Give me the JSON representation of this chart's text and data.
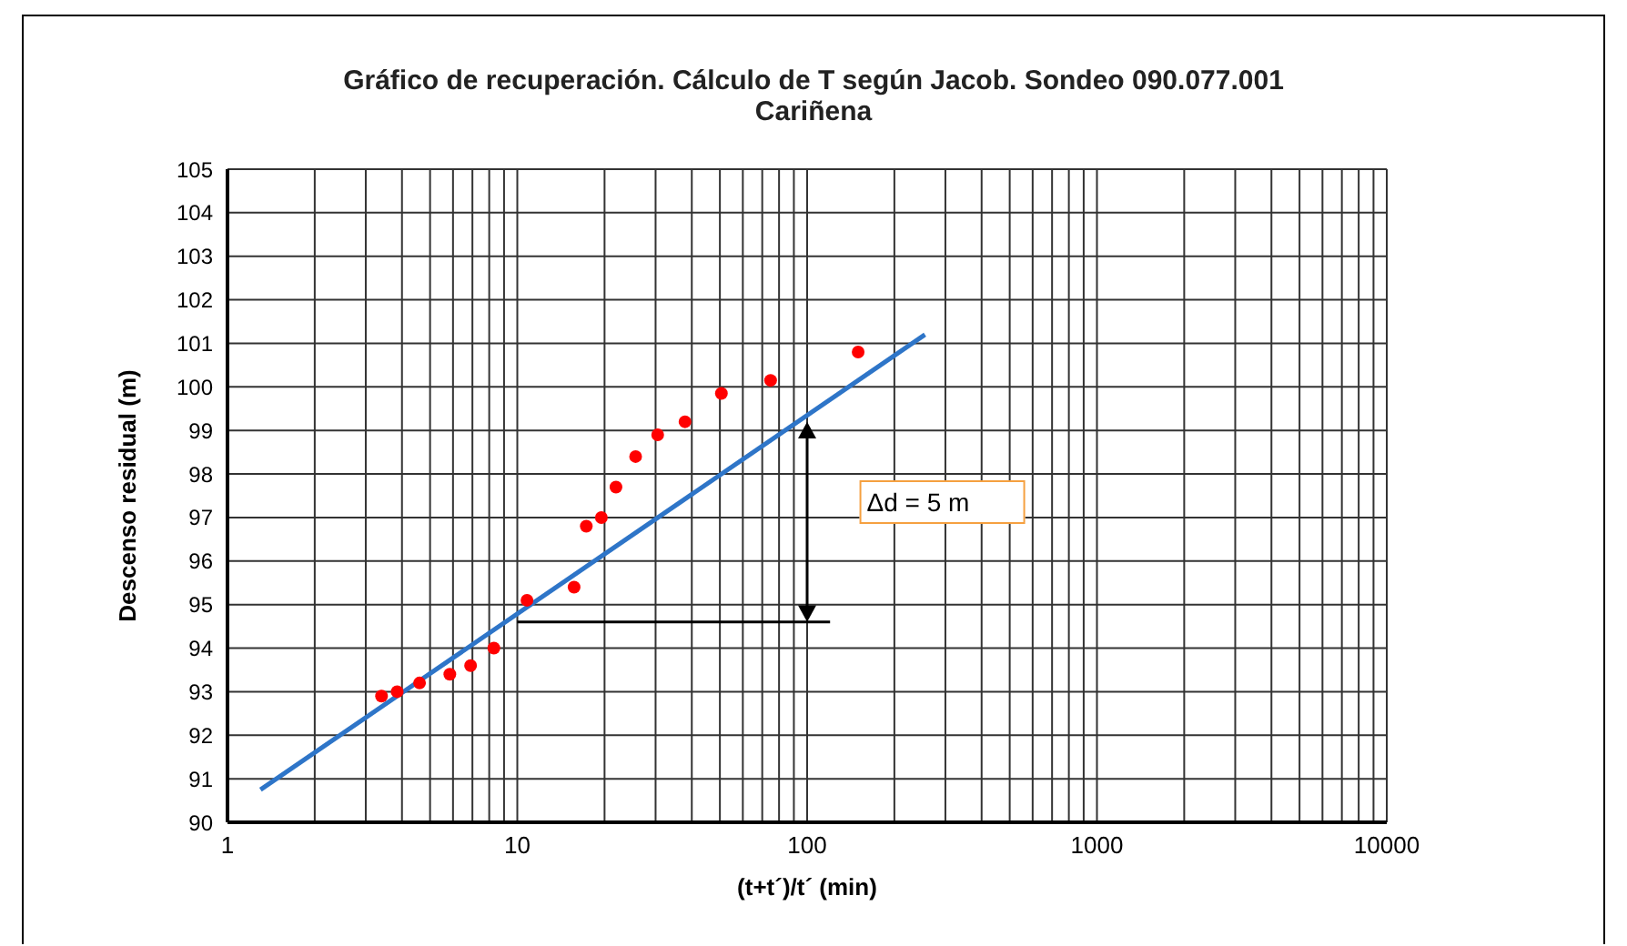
{
  "chart_data": {
    "type": "scatter",
    "title": "Gráfico de recuperación. Cálculo de T según Jacob. Sondeo 090.077.001\nCariñena",
    "xlabel": "(t+t´)/t´ (min)",
    "ylabel": "Descenso residual  (m)",
    "log": "x",
    "grid": true,
    "xlim": [
      1,
      10000
    ],
    "xticks": [
      1,
      {
        "value": 2,
        "label": null
      },
      {
        "value": 3,
        "label": null
      },
      {
        "value": 4,
        "label": null
      },
      {
        "value": 5,
        "label": null
      },
      {
        "value": 6,
        "label": null
      },
      {
        "value": 7,
        "label": null
      },
      {
        "value": 8,
        "label": null
      },
      {
        "value": 9,
        "label": null
      },
      10,
      {
        "value": 20,
        "label": null
      },
      {
        "value": 30,
        "label": null
      },
      {
        "value": 40,
        "label": null
      },
      {
        "value": 50,
        "label": null
      },
      {
        "value": 60,
        "label": null
      },
      {
        "value": 70,
        "label": null
      },
      {
        "value": 80,
        "label": null
      },
      {
        "value": 90,
        "label": null
      },
      100,
      {
        "value": 200,
        "label": null
      },
      {
        "value": 300,
        "label": null
      },
      {
        "value": 400,
        "label": null
      },
      {
        "value": 500,
        "label": null
      },
      {
        "value": 600,
        "label": null
      },
      {
        "value": 700,
        "label": null
      },
      {
        "value": 800,
        "label": null
      },
      {
        "value": 900,
        "label": null
      },
      1000,
      {
        "value": 2000,
        "label": null
      },
      {
        "value": 3000,
        "label": null
      },
      {
        "value": 4000,
        "label": null
      },
      {
        "value": 5000,
        "label": null
      },
      {
        "value": 6000,
        "label": null
      },
      {
        "value": 7000,
        "label": null
      },
      {
        "value": 8000,
        "label": null
      },
      {
        "value": 9000,
        "label": null
      },
      10000
    ],
    "ylim": [
      90,
      105
    ],
    "yticks": [
      90,
      91,
      92,
      93,
      94,
      95,
      96,
      97,
      98,
      99,
      100,
      101,
      102,
      103,
      104,
      105
    ],
    "series": [
      {
        "marker": "circle",
        "color": "#ff0000",
        "x": [
          3.4,
          3.85,
          4.6,
          5.85,
          6.9,
          8.3,
          10.8,
          15.7,
          17.3,
          19.5,
          21.9,
          25.6,
          30.5,
          37.9,
          50.6,
          74.8,
          150
        ],
        "values": [
          92.9,
          93.0,
          93.2,
          93.4,
          93.6,
          94.0,
          95.1,
          95.4,
          96.8,
          97.0,
          97.7,
          98.4,
          98.9,
          99.2,
          99.85,
          100.15,
          100.8
        ]
      },
      {
        "type": "line",
        "marker": "none",
        "color": "#2e75c8",
        "x": [
          1.3,
          255
        ],
        "values": [
          90.75,
          101.2
        ]
      }
    ],
    "annotations": [
      "Δd = 5 m"
    ]
  }
}
